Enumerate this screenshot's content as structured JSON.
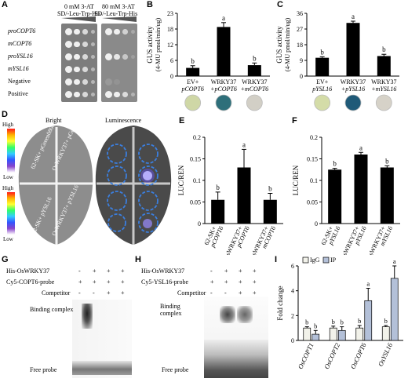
{
  "panels": {
    "A": "A",
    "B": "B",
    "C": "C",
    "D": "D",
    "E": "E",
    "F": "F",
    "G": "G",
    "H": "H",
    "I": "I"
  },
  "A": {
    "col1_line1": "0 mM 3-AT",
    "col1_line2": "SD/-Leu-Trp-His",
    "col2_line1": "80 mM 3-AT",
    "col2_line2": "SD/-Leu-Trp-His",
    "rows": [
      "proCOPT6",
      "mCOPT6",
      "proYSL16",
      "mYSL16",
      "Negative",
      "Positive"
    ]
  },
  "B": {
    "chart_data": {
      "type": "bar",
      "ylabel": "GUS activity",
      "ylabel2": "(4-MU pmol/min/ug)",
      "yticks": [
        "0",
        "6",
        "12",
        "18",
        "23"
      ],
      "ylim": [
        0,
        23
      ],
      "categories": [
        "EV+ pCOPT6",
        "WRKY37 +pCOPT6",
        "WRKY37 +mCOPT6"
      ],
      "cat_line1": [
        "EV+",
        "WRKY37",
        "WRKY37"
      ],
      "cat_line2": [
        "pCOPT6",
        "+pCOPT6",
        "+mCOPT6"
      ],
      "values": [
        3.0,
        18.0,
        4.0
      ],
      "errors": [
        0.8,
        1.6,
        0.8
      ],
      "letters": [
        "b",
        "a",
        "b"
      ]
    },
    "well_colors": [
      "#cfd7a6",
      "#2e6f7a",
      "#d2cfc6"
    ]
  },
  "C": {
    "chart_data": {
      "type": "bar",
      "ylabel": "GUS activity",
      "ylabel2": "(4-MU pmol/min/ug)",
      "yticks": [
        "0",
        "9",
        "18",
        "27",
        "36"
      ],
      "ylim": [
        0,
        36
      ],
      "categories": [
        "EV+ pYSL16",
        "WRKY37 +pYSL16",
        "WRKY37 +mYSL16"
      ],
      "cat_line1": [
        "EV+",
        "WRKY37",
        "WRKY37"
      ],
      "cat_line2": [
        "pYSL16",
        "+pYSL16",
        "+mYSL16"
      ],
      "values": [
        10.5,
        30.5,
        11.5
      ],
      "errors": [
        0.6,
        1.0,
        1.0
      ],
      "letters": [
        "b",
        "a",
        "b"
      ]
    },
    "well_colors": [
      "#d4dca8",
      "#1f5a78",
      "#d6d2c8"
    ]
  },
  "D": {
    "bright": "Bright",
    "lum": "Luminescence",
    "high": "High",
    "low": "Low",
    "leaf1_labels": [
      "62-SK+ pGreen0800",
      "OsWRKY37+ pGreen0800"
    ],
    "leaf2_labels": [
      "62-SK+ pYSL16",
      "OsWRKY37+ pYSL16"
    ]
  },
  "E": {
    "chart_data": {
      "type": "bar",
      "ylabel": "LUC/REN",
      "yticks": [
        "0",
        "0.05",
        "0.1",
        "0.15",
        "0.2"
      ],
      "ylim": [
        0,
        0.2
      ],
      "categories": [
        "62-SK+ pCOPT6",
        "OsWRKY37+ pCOPT6",
        "OsWRKY37+ mCOPT6"
      ],
      "values": [
        0.055,
        0.13,
        0.055
      ],
      "errors": [
        0.018,
        0.042,
        0.015
      ],
      "letters": [
        "b",
        "a",
        "b"
      ]
    }
  },
  "F": {
    "chart_data": {
      "type": "bar",
      "ylabel": "LUC/REN",
      "yticks": [
        "0",
        "0.05",
        "0.1",
        "0.15",
        "0.2"
      ],
      "ylim": [
        0,
        0.2
      ],
      "categories": [
        "62-SK+ pYSL16",
        "OsWRKY37+ pYSL16",
        "OsWRKY37+ mYSL16"
      ],
      "values": [
        0.125,
        0.16,
        0.13
      ],
      "errors": [
        0.003,
        0.005,
        0.004
      ],
      "letters": [
        "b",
        "a",
        "b"
      ]
    }
  },
  "G": {
    "row_labels": [
      "His-OsWRKY37",
      "Cy5-COPT6-probe",
      "Competitor"
    ],
    "signs": [
      [
        "-",
        "+",
        "+",
        "+"
      ],
      [
        "+",
        "+",
        "+",
        "+"
      ],
      [
        "-",
        "-",
        "+",
        "+"
      ]
    ],
    "binding": "Binding complex",
    "free": "Free probe"
  },
  "H": {
    "row_labels": [
      "His-OsWRKY37",
      "Cy5-YSL16-probe",
      "Competitor"
    ],
    "signs": [
      [
        "-",
        "+",
        "+",
        "+"
      ],
      [
        "+",
        "+",
        "+",
        "+"
      ],
      [
        "-",
        "-",
        "+",
        "+"
      ]
    ],
    "binding": "Binding complex",
    "free": "Free probe"
  },
  "I": {
    "chart_data": {
      "type": "bar",
      "ylabel": "Fold change",
      "yticks": [
        "0",
        "2",
        "4",
        "6"
      ],
      "ylim": [
        0,
        6
      ],
      "categories": [
        "OsCOPT1",
        "OsCOPT2",
        "OsCOPT6",
        "OsYSL16"
      ],
      "series": [
        {
          "name": "IgG",
          "values": [
            1.0,
            1.0,
            1.0,
            1.1
          ],
          "errors": [
            0.1,
            0.15,
            0.2,
            0.1
          ],
          "letters": [
            "b",
            "b",
            "b",
            "b"
          ],
          "color": "#f2f2ea"
        },
        {
          "name": "IP",
          "values": [
            0.5,
            0.8,
            3.2,
            5.0
          ],
          "errors": [
            0.3,
            0.3,
            1.0,
            1.0
          ],
          "letters": [
            "b",
            "b",
            "a",
            "a"
          ],
          "color": "#b3c0d8"
        }
      ]
    }
  }
}
